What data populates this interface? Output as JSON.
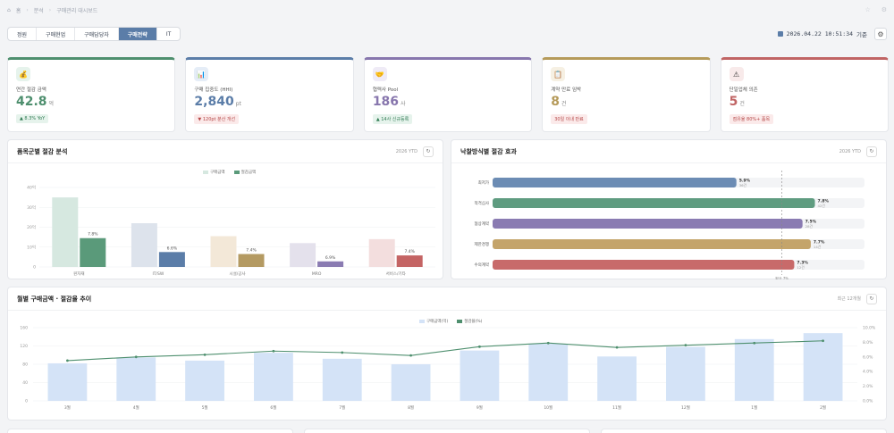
{
  "breadcrumb": {
    "home": "홈",
    "section": "분석",
    "current": "구매관리 대시보드"
  },
  "tabs": [
    {
      "label": "정원",
      "active": false
    },
    {
      "label": "구매현업",
      "active": false
    },
    {
      "label": "구매담당자",
      "active": false
    },
    {
      "label": "구매전략",
      "active": true
    },
    {
      "label": "IT",
      "active": false
    }
  ],
  "clock": {
    "datetime": "2026.04.22 10:51:34",
    "suffix": "기준"
  },
  "kpis": [
    {
      "label": "연간 절감 금액",
      "value": "42.8",
      "unit": "억",
      "badge": "▲ 8.3% YoY",
      "badge_kind": "up",
      "color": "#4e8f6e",
      "icon_bg": "#e6f3ec",
      "icon": "💰"
    },
    {
      "label": "구매 집중도 (HHI)",
      "value": "2,840",
      "unit": "pt",
      "badge": "▼ 120pt 분산 개선",
      "badge_kind": "down",
      "color": "#5b7da8",
      "icon_bg": "#e5edf7",
      "icon": "📊"
    },
    {
      "label": "협력사 Pool",
      "value": "186",
      "unit": "사",
      "badge": "▲ 14사 신규등록",
      "badge_kind": "up",
      "color": "#8776ad",
      "icon_bg": "#efebf6",
      "icon": "🤝"
    },
    {
      "label": "계약 만료 임박",
      "value": "8",
      "unit": "건",
      "badge": "30일 이내 만료",
      "badge_kind": "neutral",
      "color": "#b59a5a",
      "icon_bg": "#f6f0e3",
      "icon": "📋"
    },
    {
      "label": "단일업체 의존",
      "value": "5",
      "unit": "건",
      "badge": "점유율 80%+ 품목",
      "badge_kind": "neutral",
      "color": "#c06464",
      "icon_bg": "#f8eaea",
      "icon": "⚠"
    }
  ],
  "panels": {
    "category": {
      "title": "품목군별 절감 분석",
      "meta": "2026 YTD"
    },
    "bidding": {
      "title": "낙찰방식별 절감 효과",
      "meta": "2026 YTD"
    },
    "monthly": {
      "title": "월별 구매금액 · 절감율 추이",
      "meta": "최근 12개월"
    }
  },
  "chart_data": [
    {
      "type": "bar",
      "categories": [
        "원자재",
        "IT/SW",
        "시설/공사",
        "MRO",
        "서비스/기타"
      ],
      "series": [
        {
          "name": "구매금액",
          "values": [
            350,
            220,
            155,
            120,
            140
          ],
          "colors": [
            "#d6e8e0",
            "#dde3ec",
            "#f3e8d8",
            "#e4e1ec",
            "#f3dede"
          ]
        },
        {
          "name": "절감금액",
          "values": [
            145,
            75,
            65,
            28,
            58
          ],
          "labels": [
            "7.8%",
            "6.6%",
            "7.4%",
            "6.9%",
            "7.4%"
          ],
          "colors": [
            "#5a9a7a",
            "#5b7da8",
            "#b49a62",
            "#8a7bb2",
            "#c46464"
          ]
        }
      ],
      "ylim": [
        0,
        400
      ],
      "yticks": [
        "0",
        "10억",
        "20억",
        "30억",
        "40억"
      ]
    },
    {
      "type": "bar",
      "orientation": "horizontal",
      "categories": [
        "최저가",
        "적격심사",
        "협상계약",
        "제한경쟁",
        "수의계약"
      ],
      "values": [
        5.9,
        7.8,
        7.5,
        7.7,
        7.3
      ],
      "labels": [
        "5.9%",
        "7.8%",
        "7.5%",
        "7.7%",
        "7.3%"
      ],
      "sublabels": [
        "36건",
        "42건",
        "28건",
        "14건",
        "12건"
      ],
      "colors": [
        "#6c8cb4",
        "#5f9c80",
        "#8a7bb2",
        "#c4a46a",
        "#c86a6a"
      ],
      "xlim": [
        0,
        9
      ],
      "average": {
        "value": 7.0,
        "label": "평균 7%"
      }
    },
    {
      "type": "bar",
      "categories": [
        "3월",
        "4월",
        "5월",
        "6월",
        "7월",
        "8월",
        "9월",
        "10월",
        "11월",
        "12월",
        "1월",
        "2월"
      ],
      "series": [
        {
          "name": "구매금액(억)",
          "type": "bar",
          "values": [
            82,
            95,
            88,
            105,
            92,
            80,
            110,
            125,
            97,
            118,
            135,
            148
          ]
        },
        {
          "name": "절감율(%)",
          "type": "line",
          "values": [
            5.5,
            6.0,
            6.3,
            6.8,
            6.6,
            6.2,
            7.4,
            7.9,
            7.3,
            7.6,
            7.9,
            8.2
          ]
        }
      ],
      "ylim": [
        0,
        160
      ],
      "yticks": [
        "0",
        "40",
        "80",
        "120",
        "160"
      ],
      "y2lim": [
        0,
        10
      ],
      "y2ticks": [
        "0.0%",
        "2.0%",
        "4.0%",
        "6.0%",
        "8.0%",
        "10.0%"
      ]
    }
  ]
}
